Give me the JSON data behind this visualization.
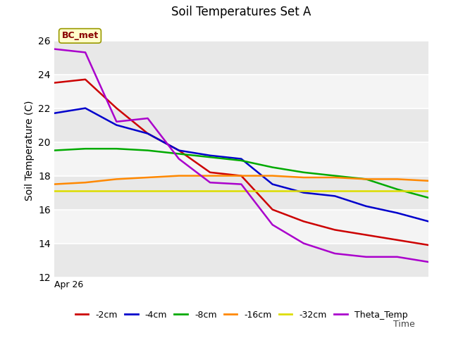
{
  "title": "Soil Temperatures Set A",
  "ylabel": "Soil Temperature (C)",
  "ylim": [
    12,
    27
  ],
  "yticks": [
    12,
    14,
    16,
    18,
    20,
    22,
    24,
    26
  ],
  "annotation_text": "BC_met",
  "background_color": "#e8e8e8",
  "plot_bg_color": "#f0f0f0",
  "series": {
    "-2cm": {
      "color": "#cc0000",
      "x": [
        0,
        1,
        2,
        3,
        4,
        5,
        6,
        7,
        8,
        9,
        10,
        11,
        12
      ],
      "y": [
        23.5,
        23.7,
        22.0,
        20.5,
        19.5,
        18.2,
        18.0,
        16.0,
        15.3,
        14.8,
        14.5,
        14.2,
        13.9
      ]
    },
    "-4cm": {
      "color": "#0000cc",
      "x": [
        0,
        1,
        2,
        3,
        4,
        5,
        6,
        7,
        8,
        9,
        10,
        11,
        12
      ],
      "y": [
        21.7,
        22.0,
        21.0,
        20.5,
        19.5,
        19.2,
        19.0,
        17.5,
        17.0,
        16.8,
        16.2,
        15.8,
        15.3
      ]
    },
    "-8cm": {
      "color": "#00aa00",
      "x": [
        0,
        1,
        2,
        3,
        4,
        5,
        6,
        7,
        8,
        9,
        10,
        11,
        12
      ],
      "y": [
        19.5,
        19.6,
        19.6,
        19.5,
        19.3,
        19.1,
        18.9,
        18.5,
        18.2,
        18.0,
        17.8,
        17.2,
        16.7
      ]
    },
    "-16cm": {
      "color": "#ff8800",
      "x": [
        0,
        1,
        2,
        3,
        4,
        5,
        6,
        7,
        8,
        9,
        10,
        11,
        12
      ],
      "y": [
        17.5,
        17.6,
        17.8,
        17.9,
        18.0,
        18.0,
        18.0,
        18.0,
        17.9,
        17.9,
        17.8,
        17.8,
        17.7
      ]
    },
    "-32cm": {
      "color": "#dddd00",
      "x": [
        0,
        1,
        2,
        3,
        4,
        5,
        6,
        7,
        8,
        9,
        10,
        11,
        12
      ],
      "y": [
        17.1,
        17.1,
        17.1,
        17.1,
        17.1,
        17.1,
        17.1,
        17.1,
        17.1,
        17.1,
        17.1,
        17.1,
        17.1
      ]
    },
    "Theta_Temp": {
      "color": "#aa00cc",
      "x": [
        0,
        1,
        2,
        3,
        4,
        5,
        6,
        7,
        8,
        9,
        10,
        11,
        12
      ],
      "y": [
        25.5,
        25.3,
        21.2,
        21.4,
        19.0,
        17.6,
        17.5,
        15.1,
        14.0,
        13.4,
        13.2,
        13.2,
        12.9
      ]
    }
  },
  "xtick_label": "Apr 26",
  "title_fontsize": 12,
  "axis_label_fontsize": 10,
  "legend_order": [
    "-2cm",
    "-4cm",
    "-8cm",
    "-16cm",
    "-32cm",
    "Theta_Temp"
  ]
}
